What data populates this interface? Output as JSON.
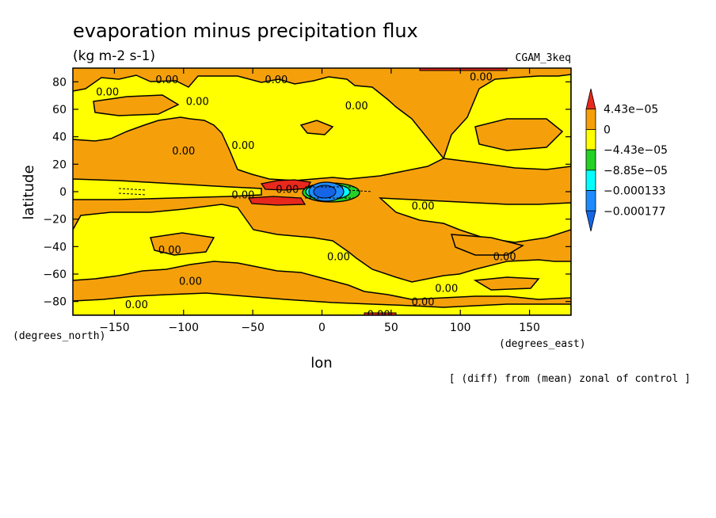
{
  "chart_data": {
    "type": "heatmap",
    "title": "evaporation minus precipitation flux",
    "units": "(kg m-2 s-1)",
    "dataset": "CGAM_3keq",
    "xlabel": "lon",
    "ylabel": "latitude",
    "x_units": "(degrees_east)",
    "y_units": "(degrees_north)",
    "footnote": "[ (diff) from (mean) zonal of control ]",
    "xlim": [
      -180,
      180
    ],
    "ylim": [
      -90,
      90
    ],
    "x_ticks": [
      -150,
      -100,
      -50,
      0,
      50,
      100,
      150
    ],
    "x_tick_labels": [
      "−150",
      "−100",
      "−50",
      "0",
      "50",
      "100",
      "150"
    ],
    "y_ticks": [
      80,
      60,
      40,
      20,
      0,
      -20,
      -40,
      -60,
      -80
    ],
    "y_tick_labels": [
      "80",
      "60",
      "40",
      "20",
      "0",
      "−20",
      "−40",
      "−60",
      "−80"
    ],
    "colorbar": {
      "levels": [
        "4.43e−05",
        "0",
        "−4.43e−05",
        "−8.85e−05",
        "−0.000133",
        "−0.000177"
      ],
      "colors": [
        "#e8281c",
        "#f5a00a",
        "#ffff00",
        "#25d125",
        "#00ffff",
        "#1e8cff",
        "#1466e6"
      ]
    },
    "contour_labels": [
      {
        "text": "0.00",
        "lon": -155,
        "lat": 73
      },
      {
        "text": "0.00",
        "lon": -112,
        "lat": 82
      },
      {
        "text": "0.00",
        "lon": -90,
        "lat": 66
      },
      {
        "text": "0.00",
        "lon": -33,
        "lat": 82
      },
      {
        "text": "0.00",
        "lon": 115,
        "lat": 84
      },
      {
        "text": "0.00",
        "lon": 25,
        "lat": 63
      },
      {
        "text": "0.00",
        "lon": -100,
        "lat": 30
      },
      {
        "text": "0.00",
        "lon": -57,
        "lat": 34
      },
      {
        "text": "0.00",
        "lon": -57,
        "lat": -2
      },
      {
        "text": "0.00",
        "lon": -25,
        "lat": 2
      },
      {
        "text": "0.00",
        "lon": 73,
        "lat": -10
      },
      {
        "text": "0.00",
        "lon": -110,
        "lat": -42
      },
      {
        "text": "0.00",
        "lon": 12,
        "lat": -47
      },
      {
        "text": "0.00",
        "lon": 132,
        "lat": -47
      },
      {
        "text": "0.00",
        "lon": -95,
        "lat": -65
      },
      {
        "text": "0.00",
        "lon": 90,
        "lat": -70
      },
      {
        "text": "0.00",
        "lon": -134,
        "lat": -82
      },
      {
        "text": "0.00",
        "lon": 73,
        "lat": -80
      },
      {
        "text": "0.00",
        "lon": 41,
        "lat": -89
      }
    ]
  }
}
